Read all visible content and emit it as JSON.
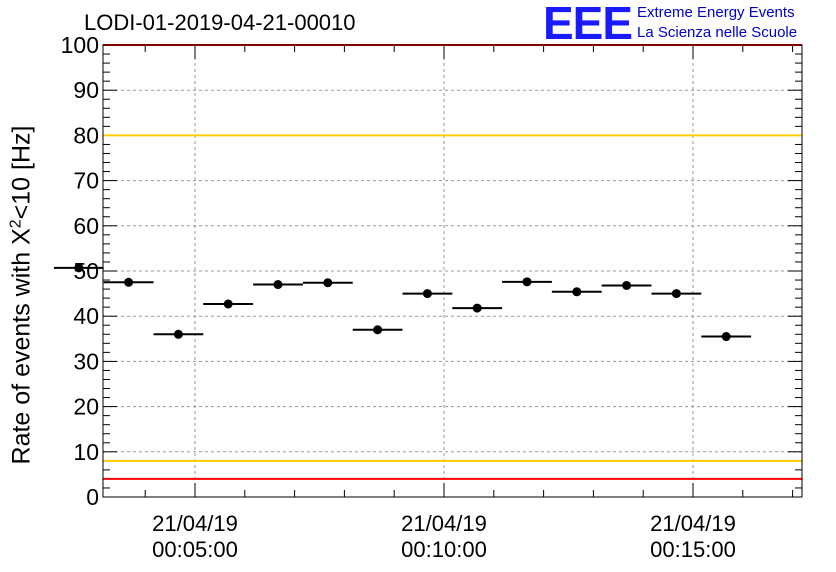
{
  "chart_data": {
    "type": "scatter",
    "title": "LODI-01-2019-04-21-00010",
    "ylabel_prefix": "Rate of events with X",
    "ylabel_sup": "2",
    "ylabel_suffix": "<10 [Hz]",
    "ylim": [
      0,
      100
    ],
    "yticks": [
      "0",
      "10",
      "20",
      "30",
      "40",
      "50",
      "60",
      "70",
      "80",
      "90",
      "100"
    ],
    "xticks": [
      {
        "date": "21/04/19",
        "time": "00:05:00"
      },
      {
        "date": "21/04/19",
        "time": "00:10:00"
      },
      {
        "date": "21/04/19",
        "time": "00:15:00"
      }
    ],
    "grid": true,
    "points": [
      {
        "x": "00:02:40",
        "y": 50.7
      },
      {
        "x": "00:03:40",
        "y": 47.5
      },
      {
        "x": "00:04:40",
        "y": 36.0
      },
      {
        "x": "00:05:40",
        "y": 42.7
      },
      {
        "x": "00:06:40",
        "y": 47.0
      },
      {
        "x": "00:07:40",
        "y": 47.4
      },
      {
        "x": "00:08:40",
        "y": 37.0
      },
      {
        "x": "00:09:40",
        "y": 45.0
      },
      {
        "x": "00:10:40",
        "y": 41.8
      },
      {
        "x": "00:11:40",
        "y": 47.6
      },
      {
        "x": "00:12:40",
        "y": 45.4
      },
      {
        "x": "00:13:40",
        "y": 46.8
      },
      {
        "x": "00:14:40",
        "y": 45.0
      },
      {
        "x": "00:15:40",
        "y": 35.5
      }
    ],
    "thresholds": [
      {
        "y": 100,
        "color": "#ff0000"
      },
      {
        "y": 80,
        "color": "#ffcc00"
      },
      {
        "y": 8,
        "color": "#ffcc00"
      },
      {
        "y": 4,
        "color": "#ff0000"
      }
    ]
  },
  "logo": {
    "mark": "EEE",
    "line1": "Extreme Energy Events",
    "line2": "La Scienza nelle Scuole"
  }
}
